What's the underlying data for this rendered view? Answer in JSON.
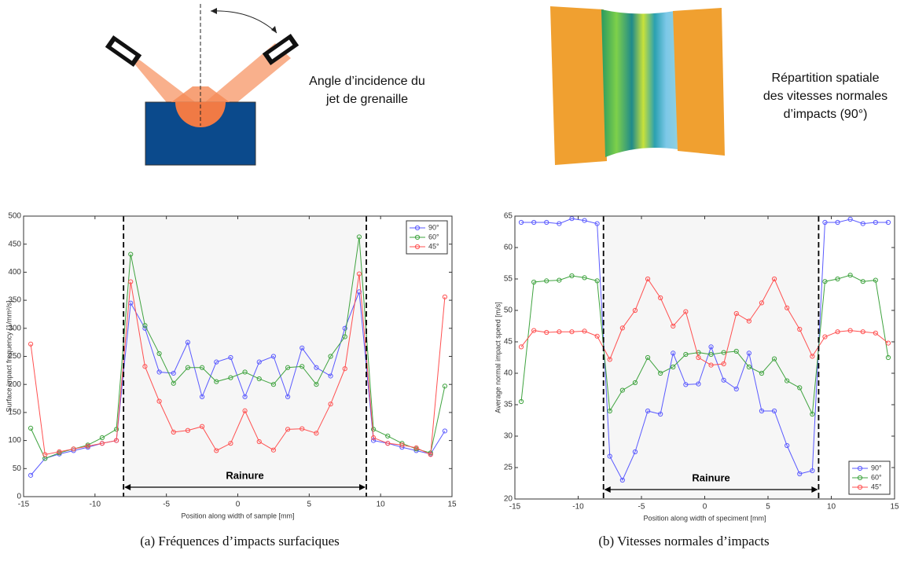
{
  "illustrations": {
    "incidence_label": [
      "Angle d’incidence du",
      "jet de grenaille"
    ],
    "distribution_label": [
      "Répartition spatiale",
      "des vitesses normales",
      "d’impacts (90°)"
    ]
  },
  "chart_data": [
    {
      "type": "line",
      "caption": "(a) Fréquences d’impacts surfaciques",
      "x_label": "Position along width of sample [mm]",
      "y_label": "Surface impact frequency [1/mm²/s]",
      "annotation": "Rainure",
      "groove_x": [
        -8,
        9
      ],
      "legend": "upper right",
      "x": [
        -14.5,
        -13.5,
        -12.5,
        -11.5,
        -10.5,
        -9.5,
        -8.5,
        -7.5,
        -6.5,
        -5.5,
        -4.5,
        -3.5,
        -2.5,
        -1.5,
        -0.5,
        0.5,
        1.5,
        2.5,
        3.5,
        4.5,
        5.5,
        6.5,
        7.5,
        8.5,
        9.5,
        10.5,
        11.5,
        12.5,
        13.5,
        14.5
      ],
      "xlim": [
        -15,
        15
      ],
      "xticks": [
        -15,
        -10,
        -5,
        0,
        5,
        10,
        15
      ],
      "ylim": [
        0,
        500
      ],
      "yticks": [
        0,
        50,
        100,
        150,
        200,
        250,
        300,
        350,
        400,
        450,
        500
      ],
      "series": [
        {
          "name": "90°",
          "color": "#5a5aff",
          "values": [
            38,
            68,
            76,
            82,
            88,
            95,
            100,
            345,
            300,
            222,
            220,
            275,
            178,
            240,
            248,
            178,
            240,
            250,
            178,
            265,
            230,
            215,
            300,
            365,
            100,
            95,
            88,
            82,
            76,
            117
          ]
        },
        {
          "name": "60°",
          "color": "#3fa33f",
          "values": [
            122,
            68,
            78,
            85,
            92,
            105,
            120,
            432,
            305,
            255,
            202,
            230,
            230,
            205,
            212,
            222,
            210,
            200,
            230,
            232,
            200,
            250,
            285,
            463,
            120,
            108,
            95,
            85,
            78,
            197
          ]
        },
        {
          "name": "45°",
          "color": "#ff5050",
          "values": [
            272,
            75,
            80,
            85,
            90,
            95,
            100,
            383,
            232,
            170,
            115,
            118,
            125,
            82,
            95,
            153,
            98,
            83,
            120,
            121,
            113,
            165,
            228,
            397,
            105,
            95,
            92,
            87,
            75,
            356
          ]
        }
      ]
    },
    {
      "type": "line",
      "caption": "(b) Vitesses normales d’impacts",
      "x_label": "Position along width of speciment [mm]",
      "y_label": "Average normal impact speed [m/s]",
      "annotation": "Rainure",
      "groove_x": [
        -8,
        9
      ],
      "legend": "lower right",
      "x": [
        -14.5,
        -13.5,
        -12.5,
        -11.5,
        -10.5,
        -9.5,
        -8.5,
        -7.5,
        -6.5,
        -5.5,
        -4.5,
        -3.5,
        -2.5,
        -1.5,
        -0.5,
        0.5,
        1.5,
        2.5,
        3.5,
        4.5,
        5.5,
        6.5,
        7.5,
        8.5,
        9.5,
        10.5,
        11.5,
        12.5,
        13.5,
        14.5
      ],
      "xlim": [
        -15,
        15
      ],
      "xticks": [
        -15,
        -10,
        -5,
        0,
        5,
        10,
        15
      ],
      "ylim": [
        20,
        65
      ],
      "yticks": [
        20,
        25,
        30,
        35,
        40,
        45,
        50,
        55,
        60,
        65
      ],
      "series": [
        {
          "name": "90°",
          "color": "#5a5aff",
          "values": [
            64,
            64,
            64,
            63.8,
            64.6,
            64.3,
            63.8,
            26.8,
            23,
            27.5,
            34,
            33.5,
            43.2,
            38.2,
            38.3,
            44.2,
            38.9,
            37.5,
            43.2,
            34,
            34,
            28.5,
            24,
            24.5,
            64,
            64,
            64.5,
            63.8,
            64,
            64
          ]
        },
        {
          "name": "60°",
          "color": "#3fa33f",
          "values": [
            35.5,
            54.5,
            54.7,
            54.8,
            55.5,
            55.2,
            54.7,
            34,
            37.3,
            38.5,
            42.5,
            40,
            41,
            43,
            43.3,
            43,
            43.3,
            43.5,
            41,
            40,
            42.3,
            38.8,
            37.7,
            33.5,
            54.6,
            55,
            55.6,
            54.6,
            54.8,
            42.5
          ]
        },
        {
          "name": "45°",
          "color": "#ff5050",
          "values": [
            44.2,
            46.8,
            46.5,
            46.6,
            46.6,
            46.7,
            45.9,
            42.2,
            47.2,
            50,
            55,
            52,
            47.5,
            49.8,
            42.5,
            41.3,
            41.5,
            49.5,
            48.3,
            51.2,
            55,
            50.4,
            47,
            42.7,
            45.8,
            46.6,
            46.8,
            46.6,
            46.4,
            44.8
          ]
        }
      ]
    }
  ]
}
